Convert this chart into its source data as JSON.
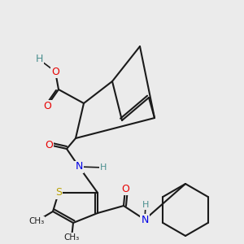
{
  "background_color": "#ebebeb",
  "atom_colors": {
    "C": "#1a1a1a",
    "O": "#e60000",
    "N": "#0000e6",
    "S": "#b8a000",
    "H": "#4a8f8f"
  },
  "bond_color": "#1a1a1a",
  "bond_width": 1.5,
  "figsize": [
    3.0,
    3.0
  ],
  "dpi": 100
}
